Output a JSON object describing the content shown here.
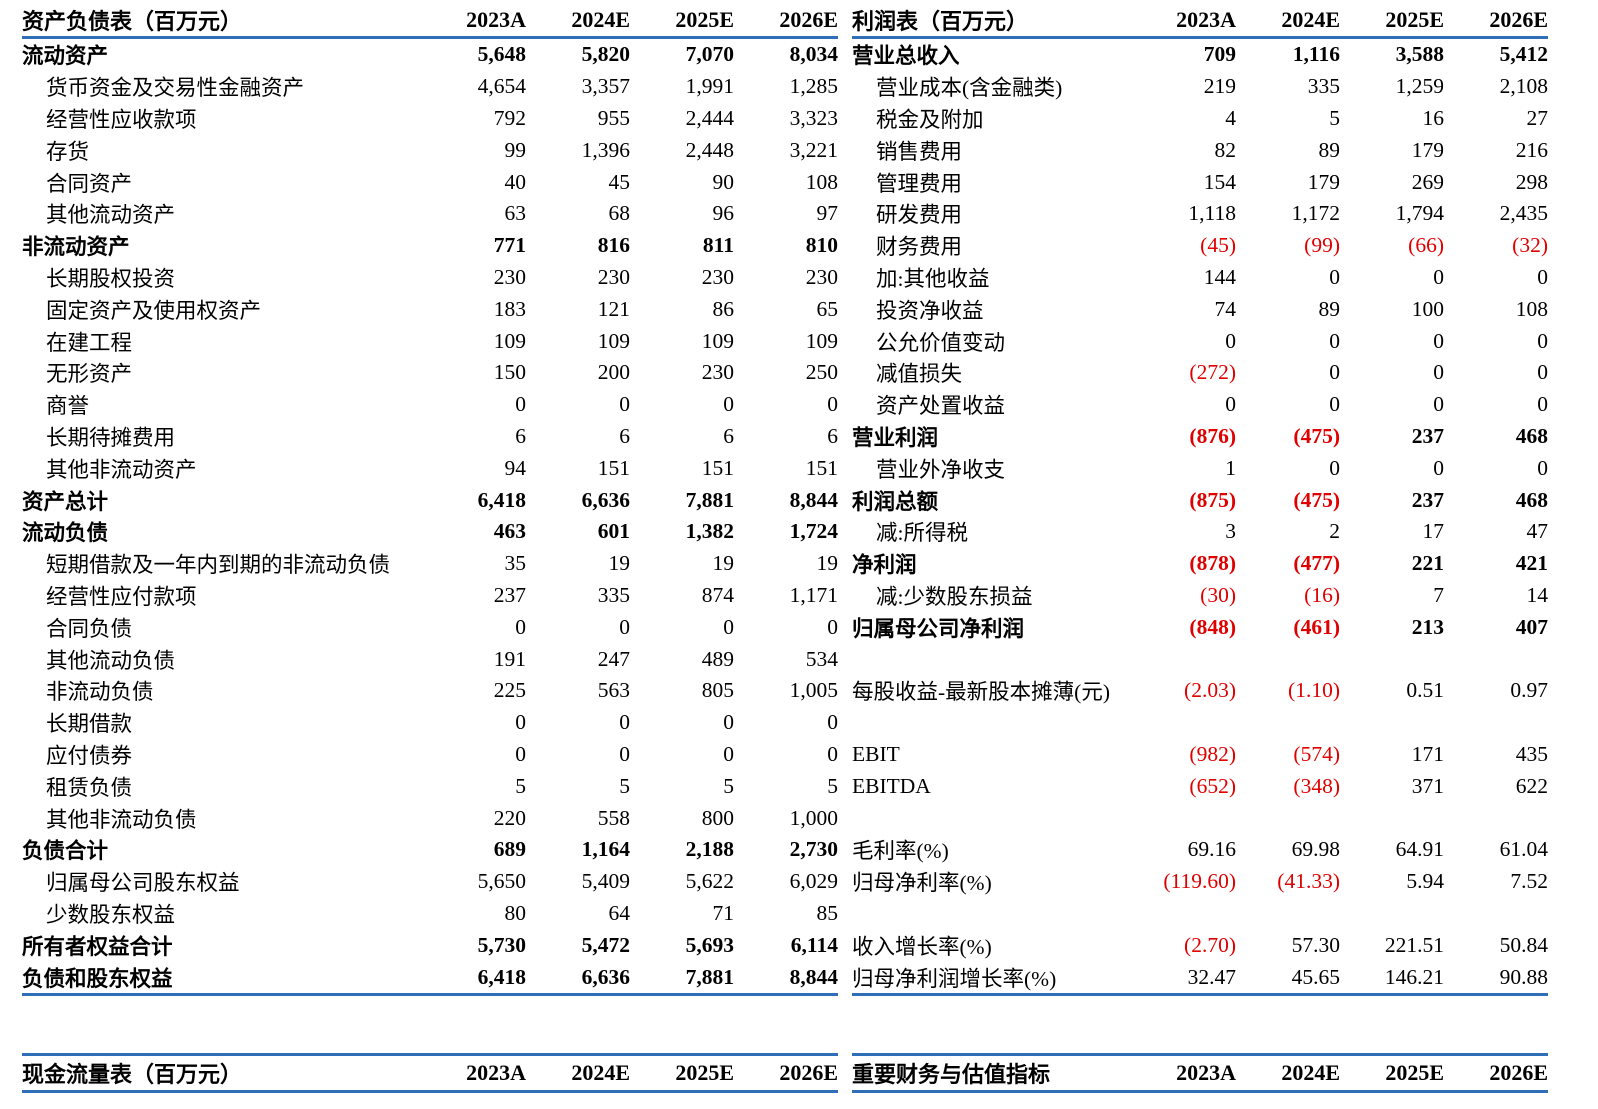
{
  "balance_sheet": {
    "title": "资产负债表（百万元）",
    "years": [
      "2023A",
      "2024E",
      "2025E",
      "2026E"
    ],
    "rows": [
      {
        "label": "流动资产",
        "values": [
          "5,648",
          "5,820",
          "7,070",
          "8,034"
        ],
        "bold": true,
        "indent": false
      },
      {
        "label": "货币资金及交易性金融资产",
        "values": [
          "4,654",
          "3,357",
          "1,991",
          "1,285"
        ],
        "bold": false,
        "indent": true
      },
      {
        "label": "经营性应收款项",
        "values": [
          "792",
          "955",
          "2,444",
          "3,323"
        ],
        "bold": false,
        "indent": true
      },
      {
        "label": "存货",
        "values": [
          "99",
          "1,396",
          "2,448",
          "3,221"
        ],
        "bold": false,
        "indent": true
      },
      {
        "label": "合同资产",
        "values": [
          "40",
          "45",
          "90",
          "108"
        ],
        "bold": false,
        "indent": true
      },
      {
        "label": "其他流动资产",
        "values": [
          "63",
          "68",
          "96",
          "97"
        ],
        "bold": false,
        "indent": true
      },
      {
        "label": "非流动资产",
        "values": [
          "771",
          "816",
          "811",
          "810"
        ],
        "bold": true,
        "indent": false
      },
      {
        "label": "长期股权投资",
        "values": [
          "230",
          "230",
          "230",
          "230"
        ],
        "bold": false,
        "indent": true
      },
      {
        "label": "固定资产及使用权资产",
        "values": [
          "183",
          "121",
          "86",
          "65"
        ],
        "bold": false,
        "indent": true
      },
      {
        "label": "在建工程",
        "values": [
          "109",
          "109",
          "109",
          "109"
        ],
        "bold": false,
        "indent": true
      },
      {
        "label": "无形资产",
        "values": [
          "150",
          "200",
          "230",
          "250"
        ],
        "bold": false,
        "indent": true
      },
      {
        "label": "商誉",
        "values": [
          "0",
          "0",
          "0",
          "0"
        ],
        "bold": false,
        "indent": true
      },
      {
        "label": "长期待摊费用",
        "values": [
          "6",
          "6",
          "6",
          "6"
        ],
        "bold": false,
        "indent": true
      },
      {
        "label": "其他非流动资产",
        "values": [
          "94",
          "151",
          "151",
          "151"
        ],
        "bold": false,
        "indent": true
      },
      {
        "label": "资产总计",
        "values": [
          "6,418",
          "6,636",
          "7,881",
          "8,844"
        ],
        "bold": true,
        "indent": false
      },
      {
        "label": "流动负债",
        "values": [
          "463",
          "601",
          "1,382",
          "1,724"
        ],
        "bold": true,
        "indent": false
      },
      {
        "label": "短期借款及一年内到期的非流动负债",
        "values": [
          "35",
          "19",
          "19",
          "19"
        ],
        "bold": false,
        "indent": true
      },
      {
        "label": "经营性应付款项",
        "values": [
          "237",
          "335",
          "874",
          "1,171"
        ],
        "bold": false,
        "indent": true
      },
      {
        "label": "合同负债",
        "values": [
          "0",
          "0",
          "0",
          "0"
        ],
        "bold": false,
        "indent": true
      },
      {
        "label": "其他流动负债",
        "values": [
          "191",
          "247",
          "489",
          "534"
        ],
        "bold": false,
        "indent": true
      },
      {
        "label": "非流动负债",
        "values": [
          "225",
          "563",
          "805",
          "1,005"
        ],
        "bold": false,
        "indent": true
      },
      {
        "label": "长期借款",
        "values": [
          "0",
          "0",
          "0",
          "0"
        ],
        "bold": false,
        "indent": true
      },
      {
        "label": "应付债券",
        "values": [
          "0",
          "0",
          "0",
          "0"
        ],
        "bold": false,
        "indent": true
      },
      {
        "label": "租赁负债",
        "values": [
          "5",
          "5",
          "5",
          "5"
        ],
        "bold": false,
        "indent": true
      },
      {
        "label": "其他非流动负债",
        "values": [
          "220",
          "558",
          "800",
          "1,000"
        ],
        "bold": false,
        "indent": true
      },
      {
        "label": "负债合计",
        "values": [
          "689",
          "1,164",
          "2,188",
          "2,730"
        ],
        "bold": true,
        "indent": false
      },
      {
        "label": "归属母公司股东权益",
        "values": [
          "5,650",
          "5,409",
          "5,622",
          "6,029"
        ],
        "bold": false,
        "indent": true
      },
      {
        "label": "少数股东权益",
        "values": [
          "80",
          "64",
          "71",
          "85"
        ],
        "bold": false,
        "indent": true
      },
      {
        "label": "所有者权益合计",
        "values": [
          "5,730",
          "5,472",
          "5,693",
          "6,114"
        ],
        "bold": true,
        "indent": false
      },
      {
        "label": "负债和股东权益",
        "values": [
          "6,418",
          "6,636",
          "7,881",
          "8,844"
        ],
        "bold": true,
        "indent": false
      }
    ]
  },
  "income_statement": {
    "title": "利润表（百万元）",
    "years": [
      "2023A",
      "2024E",
      "2025E",
      "2026E"
    ],
    "rows": [
      {
        "label": "营业总收入",
        "values": [
          "709",
          "1,116",
          "3,588",
          "5,412"
        ],
        "bold": true,
        "indent": false
      },
      {
        "label": "营业成本(含金融类)",
        "values": [
          "219",
          "335",
          "1,259",
          "2,108"
        ],
        "bold": false,
        "indent": true
      },
      {
        "label": "税金及附加",
        "values": [
          "4",
          "5",
          "16",
          "27"
        ],
        "bold": false,
        "indent": true
      },
      {
        "label": "销售费用",
        "values": [
          "82",
          "89",
          "179",
          "216"
        ],
        "bold": false,
        "indent": true
      },
      {
        "label": "管理费用",
        "values": [
          "154",
          "179",
          "269",
          "298"
        ],
        "bold": false,
        "indent": true
      },
      {
        "label": "研发费用",
        "values": [
          "1,118",
          "1,172",
          "1,794",
          "2,435"
        ],
        "bold": false,
        "indent": true
      },
      {
        "label": "财务费用",
        "values": [
          "(45)",
          "(99)",
          "(66)",
          "(32)"
        ],
        "bold": false,
        "indent": true
      },
      {
        "label": "加:其他收益",
        "values": [
          "144",
          "0",
          "0",
          "0"
        ],
        "bold": false,
        "indent": true
      },
      {
        "label": "投资净收益",
        "values": [
          "74",
          "89",
          "100",
          "108"
        ],
        "bold": false,
        "indent": true
      },
      {
        "label": "公允价值变动",
        "values": [
          "0",
          "0",
          "0",
          "0"
        ],
        "bold": false,
        "indent": true
      },
      {
        "label": "减值损失",
        "values": [
          "(272)",
          "0",
          "0",
          "0"
        ],
        "bold": false,
        "indent": true
      },
      {
        "label": "资产处置收益",
        "values": [
          "0",
          "0",
          "0",
          "0"
        ],
        "bold": false,
        "indent": true
      },
      {
        "label": "营业利润",
        "values": [
          "(876)",
          "(475)",
          "237",
          "468"
        ],
        "bold": true,
        "indent": false
      },
      {
        "label": "营业外净收支",
        "values": [
          "1",
          "0",
          "0",
          "0"
        ],
        "bold": false,
        "indent": true
      },
      {
        "label": "利润总额",
        "values": [
          "(875)",
          "(475)",
          "237",
          "468"
        ],
        "bold": true,
        "indent": false
      },
      {
        "label": "减:所得税",
        "values": [
          "3",
          "2",
          "17",
          "47"
        ],
        "bold": false,
        "indent": true
      },
      {
        "label": "净利润",
        "values": [
          "(878)",
          "(477)",
          "221",
          "421"
        ],
        "bold": true,
        "indent": false
      },
      {
        "label": "减:少数股东损益",
        "values": [
          "(30)",
          "(16)",
          "7",
          "14"
        ],
        "bold": false,
        "indent": true
      },
      {
        "label": "归属母公司净利润",
        "values": [
          "(848)",
          "(461)",
          "213",
          "407"
        ],
        "bold": true,
        "indent": false
      },
      {
        "label": "",
        "values": [
          "",
          "",
          "",
          ""
        ],
        "bold": false,
        "indent": false
      },
      {
        "label": "每股收益-最新股本摊薄(元)",
        "values": [
          "(2.03)",
          "(1.10)",
          "0.51",
          "0.97"
        ],
        "bold": false,
        "indent": false
      },
      {
        "label": "",
        "values": [
          "",
          "",
          "",
          ""
        ],
        "bold": false,
        "indent": false
      },
      {
        "label": "EBIT",
        "values": [
          "(982)",
          "(574)",
          "171",
          "435"
        ],
        "bold": false,
        "indent": false
      },
      {
        "label": "EBITDA",
        "values": [
          "(652)",
          "(348)",
          "371",
          "622"
        ],
        "bold": false,
        "indent": false
      },
      {
        "label": "",
        "values": [
          "",
          "",
          "",
          ""
        ],
        "bold": false,
        "indent": false
      },
      {
        "label": "毛利率(%)",
        "values": [
          "69.16",
          "69.98",
          "64.91",
          "61.04"
        ],
        "bold": false,
        "indent": false
      },
      {
        "label": "归母净利率(%)",
        "values": [
          "(119.60)",
          "(41.33)",
          "5.94",
          "7.52"
        ],
        "bold": false,
        "indent": false
      },
      {
        "label": "",
        "values": [
          "",
          "",
          "",
          ""
        ],
        "bold": false,
        "indent": false
      },
      {
        "label": "收入增长率(%)",
        "values": [
          "(2.70)",
          "57.30",
          "221.51",
          "50.84"
        ],
        "bold": false,
        "indent": false
      },
      {
        "label": "归母净利润增长率(%)",
        "values": [
          "32.47",
          "45.65",
          "146.21",
          "90.88"
        ],
        "bold": false,
        "indent": false
      }
    ]
  },
  "cash_flow": {
    "title": "现金流量表（百万元）",
    "years": [
      "2023A",
      "2024E",
      "2025E",
      "2026E"
    ]
  },
  "key_metrics": {
    "title": "重要财务与估值指标",
    "years": [
      "2023A",
      "2024E",
      "2025E",
      "2026E"
    ]
  },
  "colors": {
    "rule": "#2e6fb7",
    "negative": "#e00000",
    "text": "#000000"
  }
}
